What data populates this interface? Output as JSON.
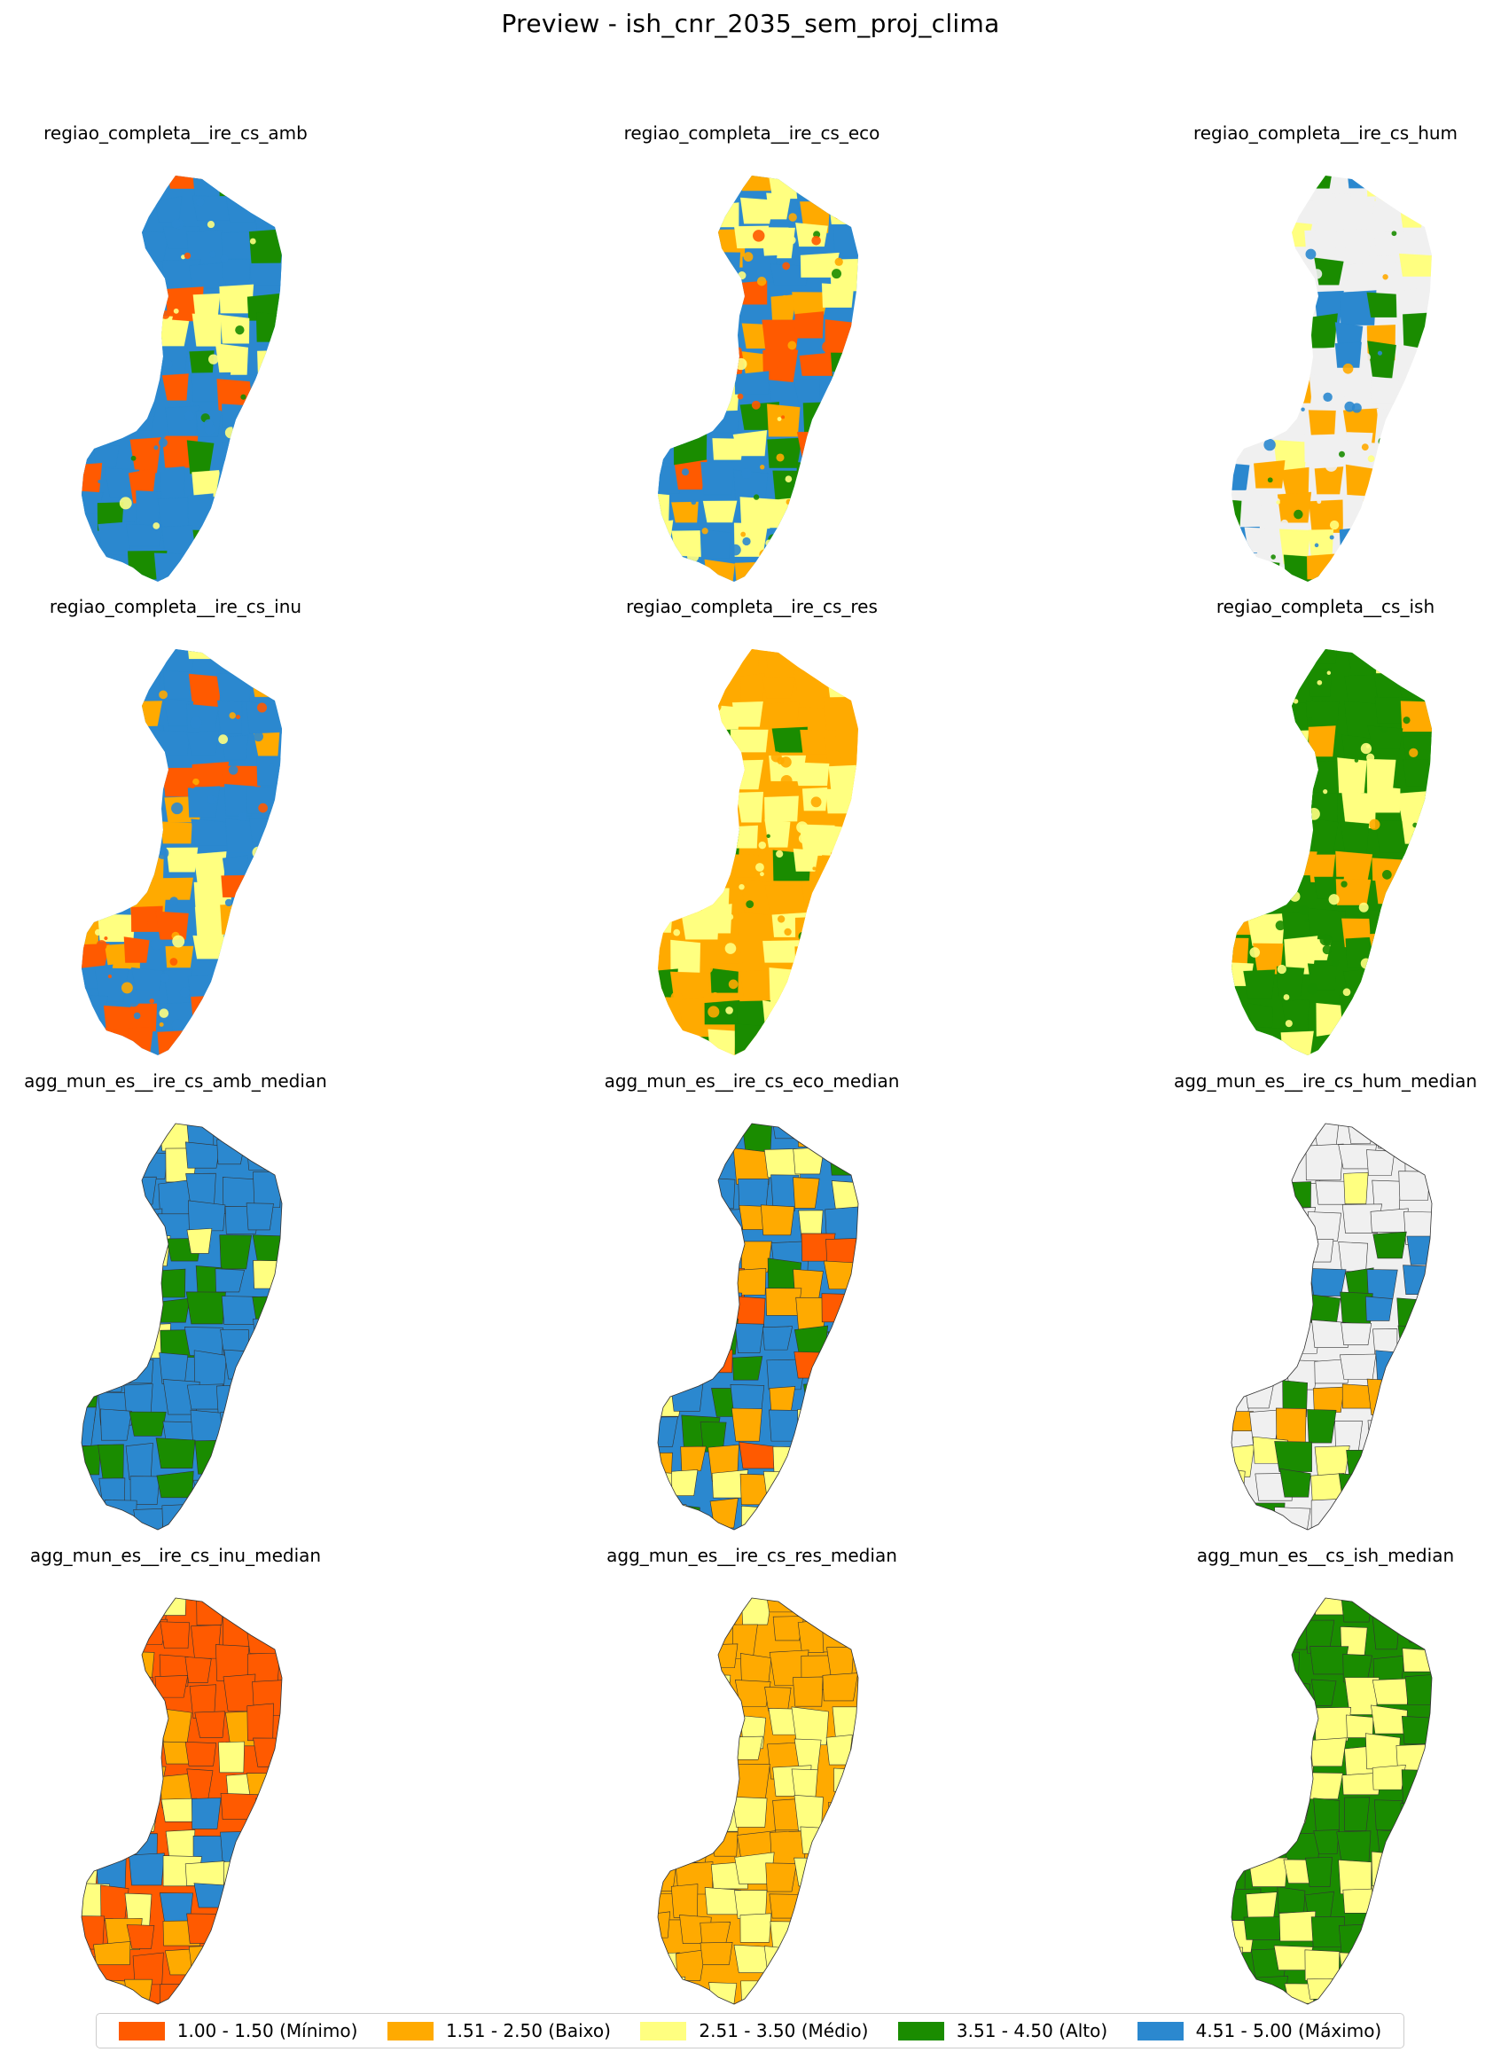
{
  "figure": {
    "title": "Preview - ish_cnr_2035_sem_proj_clima"
  },
  "colors": {
    "minimo": "#ff5a00",
    "baixo": "#ffaa00",
    "medio": "#ffff80",
    "alto": "#1a8c00",
    "maximo": "#2b88cf",
    "nodata": "#f0f0f0"
  },
  "panels": [
    {
      "title": "regiao_completa__ire_cs_amb",
      "kind": "fine",
      "palette": [
        "maximo",
        "maximo",
        "alto",
        "medio",
        "maximo",
        "minimo",
        "alto",
        "maximo"
      ]
    },
    {
      "title": "regiao_completa__ire_cs_eco",
      "kind": "fine",
      "palette": [
        "maximo",
        "medio",
        "baixo",
        "minimo",
        "alto",
        "maximo",
        "medio",
        "baixo"
      ]
    },
    {
      "title": "regiao_completa__ire_cs_hum",
      "kind": "fine",
      "palette": [
        "nodata",
        "nodata",
        "maximo",
        "alto",
        "baixo",
        "nodata",
        "maximo",
        "medio"
      ]
    },
    {
      "title": "regiao_completa__ire_cs_inu",
      "kind": "fine",
      "palette": [
        "maximo",
        "maximo",
        "minimo",
        "maximo",
        "baixo",
        "medio",
        "maximo",
        "minimo"
      ]
    },
    {
      "title": "regiao_completa__ire_cs_res",
      "kind": "fine",
      "palette": [
        "baixo",
        "baixo",
        "medio",
        "medio",
        "baixo",
        "medio",
        "alto",
        "medio"
      ]
    },
    {
      "title": "regiao_completa__cs_ish",
      "kind": "fine",
      "palette": [
        "alto",
        "medio",
        "alto",
        "medio",
        "alto",
        "baixo",
        "alto",
        "medio"
      ]
    },
    {
      "title": "agg_mun_es__ire_cs_amb_median",
      "kind": "mun",
      "palette": [
        "maximo",
        "maximo",
        "alto",
        "medio",
        "maximo",
        "maximo",
        "alto",
        "maximo"
      ]
    },
    {
      "title": "agg_mun_es__ire_cs_eco_median",
      "kind": "mun",
      "palette": [
        "maximo",
        "medio",
        "baixo",
        "minimo",
        "alto",
        "maximo",
        "medio",
        "baixo"
      ]
    },
    {
      "title": "agg_mun_es__ire_cs_hum_median",
      "kind": "mun",
      "palette": [
        "nodata",
        "nodata",
        "maximo",
        "alto",
        "baixo",
        "nodata",
        "alto",
        "medio"
      ]
    },
    {
      "title": "agg_mun_es__ire_cs_inu_median",
      "kind": "mun",
      "palette": [
        "minimo",
        "minimo",
        "baixo",
        "minimo",
        "maximo",
        "medio",
        "minimo",
        "baixo"
      ]
    },
    {
      "title": "agg_mun_es__ire_cs_res_median",
      "kind": "mun",
      "palette": [
        "baixo",
        "baixo",
        "medio",
        "medio",
        "baixo",
        "medio",
        "medio",
        "baixo"
      ]
    },
    {
      "title": "agg_mun_es__cs_ish_median",
      "kind": "mun",
      "palette": [
        "alto",
        "alto",
        "medio",
        "medio",
        "alto",
        "medio",
        "alto",
        "medio"
      ]
    }
  ],
  "legend": [
    {
      "label": "1.00 - 1.50 (Mínimo)",
      "color": "#ff5a00"
    },
    {
      "label": "1.51 - 2.50 (Baixo)",
      "color": "#ffaa00"
    },
    {
      "label": "2.51 - 3.50 (Médio)",
      "color": "#ffff80"
    },
    {
      "label": "3.51 - 4.50 (Alto)",
      "color": "#1a8c00"
    },
    {
      "label": "4.51 - 5.00 (Máximo)",
      "color": "#2b88cf"
    }
  ]
}
